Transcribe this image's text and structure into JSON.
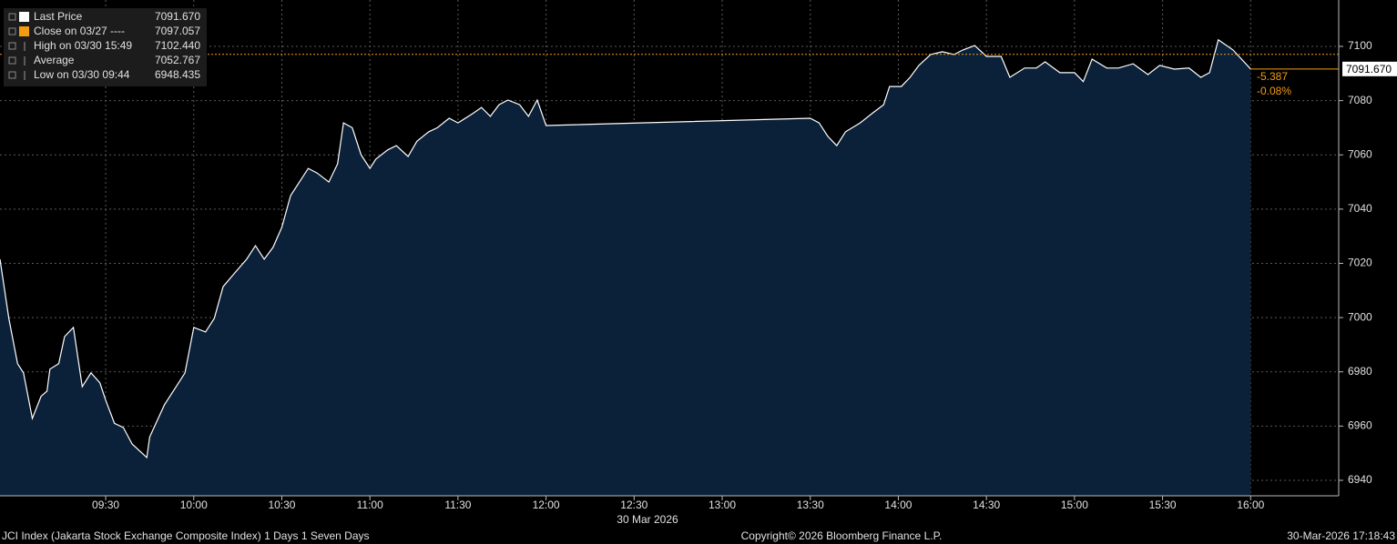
{
  "chart_data": {
    "type": "area",
    "xlim": [
      "08:54",
      "16:30"
    ],
    "xticks": [
      "09:30",
      "10:00",
      "10:30",
      "11:00",
      "11:30",
      "12:00",
      "12:30",
      "13:00",
      "13:30",
      "14:00",
      "14:30",
      "15:00",
      "15:30",
      "16:00"
    ],
    "x_date": "30 Mar 2026",
    "ylim": [
      6934.3,
      7117.1
    ],
    "yticks": [
      6940,
      6960,
      6980,
      7000,
      7020,
      7040,
      7060,
      7080,
      7100
    ],
    "grid": true,
    "x": [
      "08:54",
      "08:57",
      "09:00",
      "09:02",
      "09:05",
      "09:08",
      "09:10",
      "09:11",
      "09:14",
      "09:16",
      "09:19",
      "09:22",
      "09:25",
      "09:28",
      "09:30",
      "09:33",
      "09:36",
      "09:39",
      "09:44",
      "09:45",
      "09:50",
      "09:54",
      "09:57",
      "10:00",
      "10:04",
      "10:07",
      "10:10",
      "10:14",
      "10:18",
      "10:21",
      "10:24",
      "10:27",
      "10:30",
      "10:33",
      "10:36",
      "10:39",
      "10:42",
      "10:46",
      "10:49",
      "10:51",
      "10:54",
      "10:57",
      "11:00",
      "11:02",
      "11:06",
      "11:09",
      "11:13",
      "11:16",
      "11:20",
      "11:23",
      "11:27",
      "11:30",
      "11:35",
      "11:38",
      "11:41",
      "11:44",
      "11:47",
      "11:51",
      "11:54",
      "11:57",
      "12:00",
      "13:30",
      "13:33",
      "13:36",
      "13:39",
      "13:42",
      "13:47",
      "13:51",
      "13:55",
      "13:57",
      "14:01",
      "14:04",
      "14:07",
      "14:11",
      "14:15",
      "14:19",
      "14:22",
      "14:26",
      "14:30",
      "14:35",
      "14:38",
      "14:43",
      "14:47",
      "14:50",
      "14:55",
      "15:00",
      "15:03",
      "15:06",
      "15:11",
      "15:15",
      "15:20",
      "15:25",
      "15:29",
      "15:34",
      "15:39",
      "15:43",
      "15:46",
      "15:49",
      "15:54",
      "16:00"
    ],
    "series": [
      {
        "color": "#ffffff",
        "fill": "#0b2039",
        "values": [
          7021.5,
          6999.7,
          6983,
          6979.6,
          6962.8,
          6971,
          6972.9,
          6981,
          6983,
          6993,
          6996.4,
          6974.5,
          6979.6,
          6976,
          6969.5,
          6961,
          6959.5,
          6953.4,
          6948.435,
          6956,
          6967.8,
          6974.5,
          6979.6,
          6996.4,
          6994.7,
          6999.7,
          7011.4,
          7016.5,
          7021.5,
          7026.5,
          7021.5,
          7025.9,
          7033.3,
          7045,
          7050,
          7055,
          7053.3,
          7050,
          7056.7,
          7071.8,
          7070,
          7060,
          7055,
          7058.4,
          7061.8,
          7063.4,
          7059.4,
          7065,
          7068.5,
          7070,
          7073.5,
          7071.8,
          7075.2,
          7077.5,
          7074.2,
          7078.5,
          7080.2,
          7078.5,
          7074.2,
          7080.2,
          7070.8,
          7073.5,
          7071.8,
          7066.8,
          7063.4,
          7068.5,
          7071.8,
          7075.2,
          7078.5,
          7085.2,
          7085.2,
          7088.6,
          7093,
          7097,
          7098,
          7097,
          7098.7,
          7100.3,
          7096.3,
          7096.3,
          7088.6,
          7092,
          7092,
          7094.3,
          7090.3,
          7090.3,
          7087,
          7095.3,
          7092,
          7092,
          7093.6,
          7089.6,
          7093,
          7091.6,
          7092,
          7088.6,
          7090.3,
          7102.44,
          7098.7,
          7091.67
        ]
      }
    ],
    "reference_line": {
      "value": 7097.057,
      "color": "#f39c12"
    },
    "legend": [
      {
        "name": "Last Price",
        "value": "7091.670",
        "color": "#ffffff"
      },
      {
        "name": "Close on 03/27 ----",
        "value": "7097.057",
        "color": "#f39c12"
      },
      {
        "name": "High on 03/30 15:49",
        "value": "7102.440"
      },
      {
        "name": "Average",
        "value": "7052.767"
      },
      {
        "name": "Low on 03/30 09:44",
        "value": "6948.435"
      }
    ],
    "change": "-5.387",
    "change_pct": "-0.08%",
    "footer": {
      "left": "JCI Index (Jakarta Stock Exchange Composite Index) 1 Days 1 Seven Days",
      "center": "Copyright© 2026 Bloomberg Finance L.P.",
      "right": "30-Mar-2026 17:18:43"
    }
  }
}
